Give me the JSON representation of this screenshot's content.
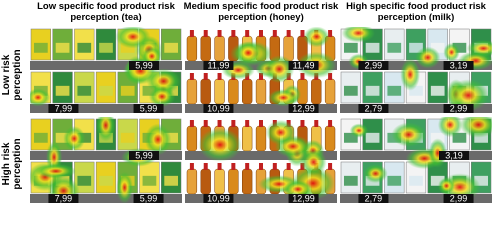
{
  "columns": [
    {
      "title": "Low specific food product risk perception (tea)"
    },
    {
      "title": "Medium specific food product risk perception (honey)"
    },
    {
      "title": "High specific food product risk perception (milk)"
    }
  ],
  "rows": [
    {
      "label": "Low risk perception",
      "panels": [
        {
          "upper_prices": [
            "5,99"
          ],
          "lower_prices": [
            "7,99",
            "5,99"
          ]
        },
        {
          "upper_prices": [
            "11,99",
            "11,49"
          ],
          "lower_prices": [
            "10,99",
            "12,99"
          ]
        },
        {
          "upper_prices": [
            "2,99",
            "3,19"
          ],
          "lower_prices": [
            "2,79",
            "2,99"
          ]
        }
      ]
    },
    {
      "label": "High risk perception",
      "panels": [
        {
          "upper_prices": [
            "5,99"
          ],
          "lower_prices": [
            "7,99",
            "5,99"
          ]
        },
        {
          "lower_prices": [
            "10,99",
            "12,99"
          ]
        },
        {
          "upper_prices": [
            "3,19"
          ],
          "lower_prices": [
            "2,79",
            "2,99"
          ]
        }
      ]
    }
  ]
}
